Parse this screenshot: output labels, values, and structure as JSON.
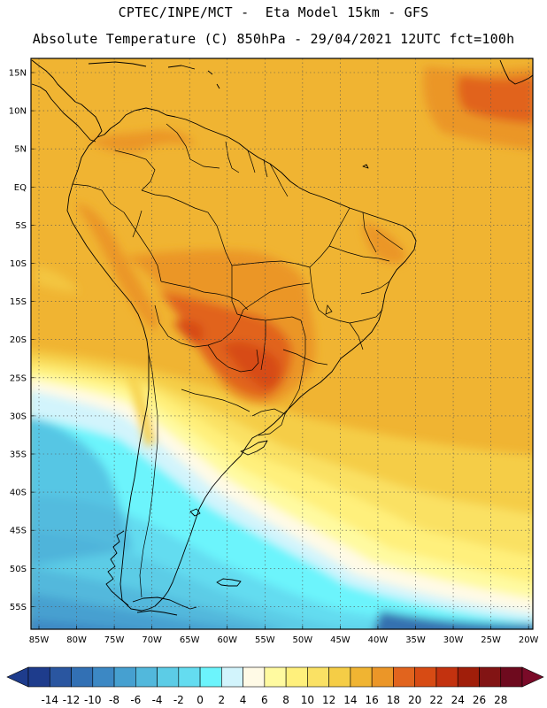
{
  "header": {
    "line1": "CPTEC/INPE/MCT -  Eta Model 15km - GFS",
    "line2": "Absolute Temperature (C) 850hPa - 29/04/2021 12UTC fct=100h"
  },
  "map": {
    "lat_labels": [
      "15N",
      "10N",
      "5N",
      "EQ",
      "5S",
      "10S",
      "15S",
      "20S",
      "25S",
      "30S",
      "35S",
      "40S",
      "45S",
      "50S",
      "55S"
    ],
    "lon_labels": [
      "85W",
      "80W",
      "75W",
      "70W",
      "65W",
      "60W",
      "55W",
      "50W",
      "45W",
      "40W",
      "35W",
      "30W",
      "25W",
      "20W"
    ],
    "gridlines": "dotted"
  },
  "colorbar": {
    "labels": [
      "-14",
      "-12",
      "-10",
      "-8",
      "-6",
      "-4",
      "-2",
      "0",
      "2",
      "4",
      "6",
      "8",
      "10",
      "12",
      "14",
      "16",
      "18",
      "20",
      "22",
      "24",
      "26",
      "28"
    ],
    "colors": [
      "#1e3c8c",
      "#2a56a0",
      "#3270b4",
      "#3c88c4",
      "#46a0d0",
      "#52b8dc",
      "#5ccce6",
      "#64dcf0",
      "#6cf4fc",
      "#d2f4fc",
      "#fffae6",
      "#fffaa0",
      "#fff07c",
      "#fae164",
      "#f5cd46",
      "#f0b432",
      "#eb9628",
      "#e1641e",
      "#d74b14",
      "#c3320f",
      "#a01e0a",
      "#821414",
      "#6e0a1e"
    ]
  }
}
